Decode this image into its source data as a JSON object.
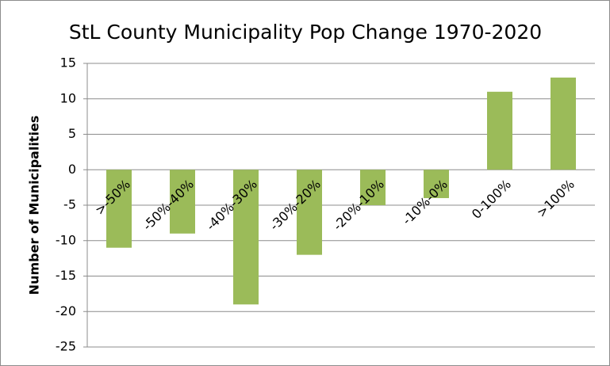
{
  "chart_data": {
    "type": "bar",
    "title": "StL County Municipality Pop Change 1970-2020",
    "y_label": "Number of Municipalities",
    "categories": [
      ">-50%",
      "-50%-40%",
      "-40%-30%",
      "-30%-20%",
      "-20%-10%",
      "-10%-0%",
      "0-100%",
      ">100%"
    ],
    "values": [
      -11,
      -9,
      -19,
      -12,
      -5,
      -4,
      11,
      13
    ],
    "color": "#9bbb59",
    "ylim": [
      -25,
      15
    ],
    "yticks": [
      -25,
      -20,
      -15,
      -10,
      -5,
      0,
      5,
      10,
      15
    ],
    "grid": true
  }
}
